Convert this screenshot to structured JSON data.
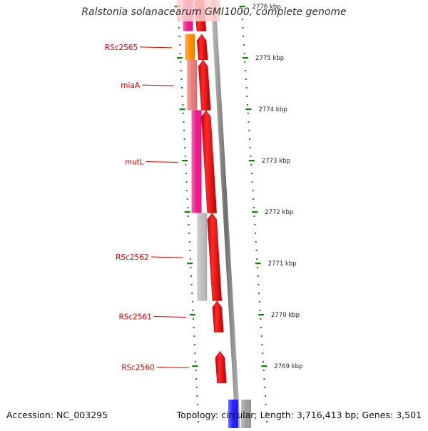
{
  "title": "Ralstonia solanacearum GMI1000, complete genome",
  "footer": {
    "accession": "Accession: NC_003295",
    "stats": "Topology: circular; Length: 3,716,413 bp; Genes: 3,501"
  },
  "genes": [
    {
      "label": "RSc2565",
      "start_kbp": 2774.96,
      "end_kbp": 2775.46,
      "cog_color": "#ff8c00"
    },
    {
      "label": "miaA",
      "start_kbp": 2773.98,
      "end_kbp": 2774.96,
      "cog_color": "#e87a7a"
    },
    {
      "label": "mutL",
      "start_kbp": 2771.98,
      "end_kbp": 2773.98,
      "cog_color": "#f0188a"
    },
    {
      "label": "RSc2562",
      "start_kbp": 2770.27,
      "end_kbp": 2771.98,
      "cog_color": "#bdbdbd"
    },
    {
      "label": "RSc2561",
      "start_kbp": 2769.66,
      "end_kbp": 2770.27,
      "cog_color": null
    },
    {
      "label": "RSc2560",
      "start_kbp": 2768.67,
      "end_kbp": 2769.29,
      "cog_color": null
    }
  ],
  "top_partial_gene": {
    "start_kbp": 2775.52,
    "cog_color": "#f0188a"
  },
  "bottom_feature_colors": [
    "#1e1eff",
    "#9e9e9e"
  ],
  "ruler_ticks": [
    {
      "kbp": 2776,
      "label": "2776 kbp"
    },
    {
      "kbp": 2775,
      "label": "2775 kbp"
    },
    {
      "kbp": 2774,
      "label": "2774 kbp"
    },
    {
      "kbp": 2773,
      "label": "2773 kbp"
    },
    {
      "kbp": 2772,
      "label": "2772 kbp"
    },
    {
      "kbp": 2771,
      "label": "2771 kbp"
    },
    {
      "kbp": 2770,
      "label": "2770 kbp"
    },
    {
      "kbp": 2769,
      "label": "2769 kbp"
    }
  ],
  "colors": {
    "cds": "#ff0000",
    "backbone": "#8a8a8a",
    "gene_label": "#d40000",
    "tick": "#1a7a1a",
    "top_overlay": "#ffd0d0"
  }
}
